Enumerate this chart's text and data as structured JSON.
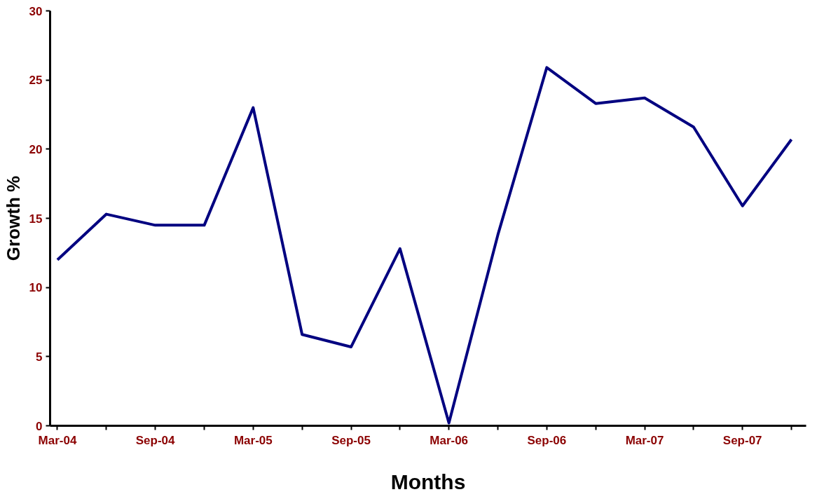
{
  "chart_data": {
    "type": "line",
    "xlabel": "Months",
    "ylabel": "Growth %",
    "categories": [
      "Mar-04",
      null,
      "Sep-04",
      null,
      "Mar-05",
      null,
      "Sep-05",
      null,
      "Mar-06",
      null,
      "Sep-06",
      null,
      "Mar-07",
      null,
      "Sep-07",
      null
    ],
    "series": [
      {
        "color": "#000080",
        "values": [
          12,
          15.3,
          14.5,
          14.5,
          23,
          6.6,
          5.7,
          12.8,
          0.2,
          13.8,
          25.9,
          23.3,
          23.7,
          21.6,
          15.9,
          20.7
        ]
      }
    ],
    "ylim": [
      0,
      30
    ],
    "yticks": [
      0,
      5,
      10,
      15,
      20,
      25,
      30
    ],
    "grid": false,
    "marker": "none",
    "line_style": "solid"
  }
}
